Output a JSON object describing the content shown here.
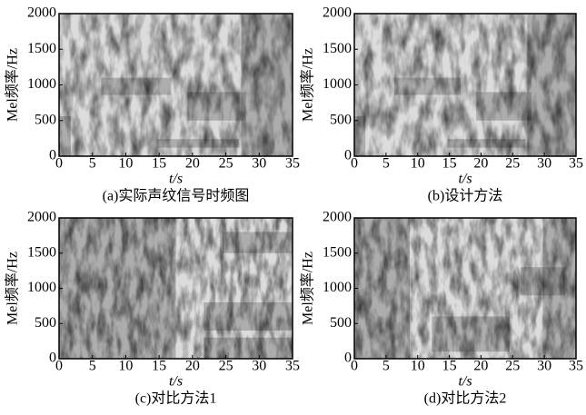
{
  "chart_data": [
    {
      "type": "spectrogram",
      "caption": "(a)实际声纹信号时频图",
      "xlabel": "t/s",
      "ylabel": "Mel频率/Hz",
      "xlim": [
        0,
        35
      ],
      "ylim": [
        0,
        2000
      ],
      "xticks": [
        0,
        5,
        10,
        15,
        20,
        25,
        30,
        35
      ],
      "yticks": [
        0,
        500,
        1000,
        1500,
        2000
      ]
    },
    {
      "type": "spectrogram",
      "caption": "(b)设计方法",
      "xlabel": "t/s",
      "ylabel": "Mel频率/Hz",
      "xlim": [
        0,
        35
      ],
      "ylim": [
        0,
        2000
      ],
      "xticks": [
        0,
        5,
        10,
        15,
        20,
        25,
        30,
        35
      ],
      "yticks": [
        0,
        500,
        1000,
        1500,
        2000
      ]
    },
    {
      "type": "spectrogram",
      "caption": "(c)对比方法1",
      "xlabel": "t/s",
      "ylabel": "Mel频率/Hz",
      "xlim": [
        0,
        35
      ],
      "ylim": [
        0,
        2000
      ],
      "xticks": [
        0,
        5,
        10,
        15,
        20,
        25,
        30,
        35
      ],
      "yticks": [
        0,
        500,
        1000,
        1500,
        2000
      ]
    },
    {
      "type": "spectrogram",
      "caption": "(d)对比方法2",
      "xlabel": "t/s",
      "ylabel": "Mel频率/Hz",
      "xlim": [
        0,
        35
      ],
      "ylim": [
        0,
        2000
      ],
      "xticks": [
        0,
        5,
        10,
        15,
        20,
        25,
        30,
        35
      ],
      "yticks": [
        0,
        500,
        1000,
        1500,
        2000
      ]
    }
  ]
}
